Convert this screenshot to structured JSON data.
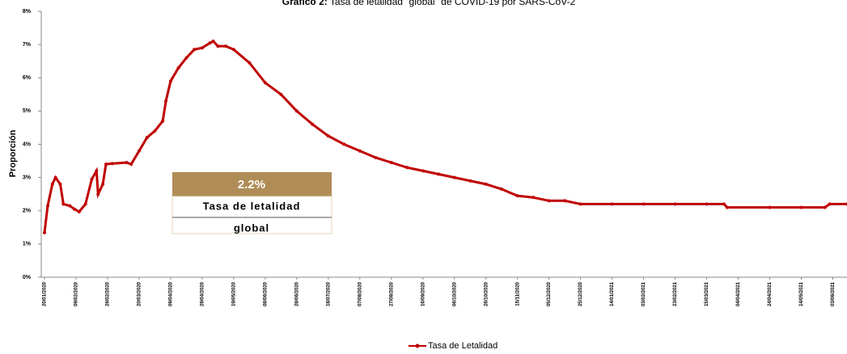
{
  "chart_data": {
    "type": "line",
    "title": "Gráfico 2:",
    "subtitle": "Tasa de letalidad \"global\" de COVID-19 por SARS-CoV-2",
    "ylabel": "Proporción",
    "annotation": {
      "value": "2.2%",
      "lines": [
        "Tasa de letalidad",
        "global"
      ]
    },
    "grid": false,
    "legend": "bottom",
    "ylim": [
      0,
      8
    ],
    "yticks": [
      {
        "value": 0,
        "label": "0%"
      },
      {
        "value": 1,
        "label": "1%"
      },
      {
        "value": 2,
        "label": "2%"
      },
      {
        "value": 3,
        "label": "3%"
      },
      {
        "value": 4,
        "label": "4%"
      },
      {
        "value": 5,
        "label": "5%"
      },
      {
        "value": 6,
        "label": "6%"
      },
      {
        "value": 7,
        "label": "7%"
      },
      {
        "value": 8,
        "label": "8%"
      }
    ],
    "xlim": [
      "20/01/2020",
      "12/06/2021"
    ],
    "xticks": [
      "20/01/2020",
      "09/02/2020",
      "29/02/2020",
      "20/03/2020",
      "09/04/2020",
      "29/04/2020",
      "19/05/2020",
      "08/06/2020",
      "28/06/2020",
      "18/07/2020",
      "07/08/2020",
      "27/08/2020",
      "16/09/2020",
      "06/10/2020",
      "26/10/2020",
      "15/11/2020",
      "05/12/2020",
      "25/12/2020",
      "14/01/2021",
      "03/02/2021",
      "23/02/2021",
      "15/03/2021",
      "04/04/2021",
      "24/04/2021",
      "14/05/2021",
      "03/06/2021"
    ],
    "x": [
      "20/01/2020",
      "22/01/2020",
      "25/01/2020",
      "27/01/2020",
      "30/01/2020",
      "01/02/2020",
      "05/02/2020",
      "08/02/2020",
      "11/02/2020",
      "15/02/2020",
      "19/02/2020",
      "22/02/2020",
      "23/02/2020",
      "26/02/2020",
      "28/02/2020",
      "03/03/2020",
      "12/03/2020",
      "15/03/2020",
      "20/03/2020",
      "25/03/2020",
      "30/03/2020",
      "04/04/2020",
      "06/04/2020",
      "09/04/2020",
      "14/04/2020",
      "19/04/2020",
      "24/04/2020",
      "29/04/2020",
      "04/05/2020",
      "06/05/2020",
      "09/05/2020",
      "14/05/2020",
      "19/05/2020",
      "29/05/2020",
      "08/06/2020",
      "18/06/2020",
      "28/06/2020",
      "08/07/2020",
      "18/07/2020",
      "28/07/2020",
      "07/08/2020",
      "17/08/2020",
      "27/08/2020",
      "06/09/2020",
      "16/09/2020",
      "26/09/2020",
      "06/10/2020",
      "16/10/2020",
      "26/10/2020",
      "05/11/2020",
      "15/11/2020",
      "25/11/2020",
      "05/12/2020",
      "15/12/2020",
      "25/12/2020",
      "14/01/2021",
      "03/02/2021",
      "23/02/2021",
      "15/03/2021",
      "26/03/2021",
      "28/03/2021",
      "24/04/2021",
      "14/05/2021",
      "29/05/2021",
      "01/06/2021",
      "12/06/2021"
    ],
    "series": [
      {
        "name": "Tasa de Letalidad",
        "color": "#c00000",
        "values": [
          1.34,
          2.14,
          2.8,
          3.0,
          2.8,
          2.2,
          2.15,
          2.05,
          1.97,
          2.2,
          2.95,
          3.2,
          2.5,
          2.8,
          3.4,
          3.42,
          3.45,
          3.4,
          3.8,
          4.2,
          4.4,
          4.7,
          5.3,
          5.9,
          6.3,
          6.6,
          6.85,
          6.9,
          7.05,
          7.1,
          6.95,
          6.95,
          6.85,
          6.45,
          5.85,
          5.5,
          5.0,
          4.6,
          4.25,
          4.0,
          3.8,
          3.6,
          3.45,
          3.3,
          3.2,
          3.1,
          3.0,
          2.9,
          2.8,
          2.65,
          2.45,
          2.4,
          2.3,
          2.3,
          2.2,
          2.2,
          2.2,
          2.2,
          2.2,
          2.2,
          2.1,
          2.1,
          2.1,
          2.1,
          2.2,
          2.2
        ]
      }
    ]
  }
}
